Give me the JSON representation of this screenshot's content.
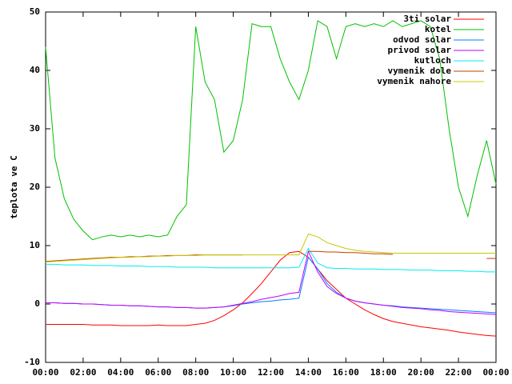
{
  "chart_data": {
    "type": "line",
    "ylabel": "teplota ve C",
    "x": [
      0,
      0.5,
      1,
      1.5,
      2,
      2.5,
      3,
      3.5,
      4,
      4.5,
      5,
      5.5,
      6,
      6.5,
      7,
      7.5,
      8,
      8.5,
      9,
      9.5,
      10,
      10.5,
      11,
      11.5,
      12,
      12.5,
      13,
      13.5,
      14,
      14.5,
      15,
      15.5,
      16,
      16.5,
      17,
      17.5,
      18,
      18.5,
      19,
      19.5,
      20,
      20.5,
      21,
      21.5,
      22,
      22.5,
      23,
      23.5,
      24
    ],
    "xlim": [
      0,
      24
    ],
    "xticks": [
      {
        "value": 0,
        "label": "00:00"
      },
      {
        "value": 2,
        "label": "02:00"
      },
      {
        "value": 4,
        "label": "04:00"
      },
      {
        "value": 6,
        "label": "06:00"
      },
      {
        "value": 8,
        "label": "08:00"
      },
      {
        "value": 10,
        "label": "10:00"
      },
      {
        "value": 12,
        "label": "12:00"
      },
      {
        "value": 14,
        "label": "14:00"
      },
      {
        "value": 16,
        "label": "16:00"
      },
      {
        "value": 18,
        "label": "18:00"
      },
      {
        "value": 20,
        "label": "20:00"
      },
      {
        "value": 22,
        "label": "22:00"
      },
      {
        "value": 24,
        "label": "00:00"
      }
    ],
    "ylim": [
      -10,
      50
    ],
    "yticks": [
      -10,
      0,
      10,
      20,
      30,
      40,
      50
    ],
    "legend": "top-right",
    "series": [
      {
        "name": "3ti solar",
        "color": "#ff0000",
        "values": [
          -3.5,
          -3.5,
          -3.5,
          -3.5,
          -3.5,
          -3.6,
          -3.6,
          -3.6,
          -3.7,
          -3.7,
          -3.7,
          -3.7,
          -3.6,
          -3.7,
          -3.7,
          -3.7,
          -3.5,
          -3.3,
          -2.8,
          -2,
          -1,
          0.2,
          1.8,
          3.5,
          5.5,
          7.5,
          8.8,
          9,
          8,
          6,
          4,
          2.5,
          1,
          0,
          -1,
          -1.8,
          -2.5,
          -3,
          -3.3,
          -3.6,
          -3.9,
          -4.1,
          -4.3,
          -4.5,
          -4.8,
          -5,
          -5.2,
          -5.4,
          -5.5
        ]
      },
      {
        "name": "kotel",
        "color": "#00c000",
        "values": [
          44,
          25,
          18,
          14.5,
          12.5,
          11,
          11.5,
          11.8,
          11.5,
          11.8,
          11.5,
          11.8,
          11.5,
          11.8,
          15,
          17,
          47.5,
          38,
          35,
          26,
          28,
          35,
          48,
          47.5,
          47.5,
          42,
          38,
          35,
          40,
          48.5,
          47.5,
          42,
          47.5,
          48,
          47.5,
          48,
          47.5,
          48.5,
          47.5,
          48,
          48.5,
          47.5,
          42,
          30,
          20,
          15,
          22,
          28,
          20.5
        ]
      },
      {
        "name": "odvod solar",
        "color": "#0080ff",
        "values": [
          0.2,
          0.2,
          0.1,
          0.1,
          0,
          0,
          -0.1,
          -0.2,
          -0.2,
          -0.3,
          -0.3,
          -0.4,
          -0.5,
          -0.5,
          -0.6,
          -0.6,
          -0.7,
          -0.7,
          -0.6,
          -0.5,
          -0.3,
          0,
          0.2,
          0.4,
          0.5,
          0.7,
          0.8,
          1,
          8,
          6,
          3.5,
          2,
          1,
          0.5,
          0.2,
          0,
          -0.2,
          -0.3,
          -0.5,
          -0.6,
          -0.7,
          -0.8,
          -0.9,
          -1,
          -1.1,
          -1.2,
          -1.3,
          -1.4,
          -1.5
        ]
      },
      {
        "name": "privod solar",
        "color": "#c000ff",
        "values": [
          0.2,
          0.2,
          0.1,
          0.1,
          0,
          0,
          -0.1,
          -0.2,
          -0.2,
          -0.3,
          -0.3,
          -0.4,
          -0.5,
          -0.5,
          -0.6,
          -0.6,
          -0.7,
          -0.7,
          -0.6,
          -0.5,
          -0.2,
          0.1,
          0.4,
          0.8,
          1.1,
          1.4,
          1.8,
          2,
          9,
          5.5,
          3,
          1.8,
          1,
          0.5,
          0.2,
          0,
          -0.2,
          -0.4,
          -0.6,
          -0.7,
          -0.8,
          -1,
          -1.1,
          -1.3,
          -1.4,
          -1.5,
          -1.6,
          -1.7,
          -1.8
        ]
      },
      {
        "name": "kutloch",
        "color": "#00eeee",
        "values": [
          6.8,
          6.8,
          6.7,
          6.7,
          6.7,
          6.6,
          6.6,
          6.6,
          6.5,
          6.5,
          6.5,
          6.4,
          6.4,
          6.4,
          6.3,
          6.3,
          6.3,
          6.3,
          6.2,
          6.2,
          6.2,
          6.2,
          6.2,
          6.2,
          6.2,
          6.2,
          6.2,
          6.3,
          9.5,
          7,
          6.2,
          6.1,
          6.1,
          6,
          6,
          6,
          5.9,
          5.9,
          5.9,
          5.8,
          5.8,
          5.8,
          5.7,
          5.7,
          5.7,
          5.6,
          5.6,
          5.5,
          5.5
        ]
      },
      {
        "name": "vymenik dole",
        "color": "#c04000",
        "values": [
          7.3,
          7.4,
          7.5,
          7.6,
          7.7,
          7.8,
          7.9,
          8,
          8,
          8.1,
          8.1,
          8.2,
          8.2,
          8.3,
          8.3,
          8.3,
          8.4,
          8.4,
          8.4,
          8.4,
          8.4,
          8.4,
          null,
          null,
          null,
          null,
          null,
          null,
          9,
          9,
          8.9,
          8.9,
          8.8,
          8.8,
          8.7,
          8.6,
          8.6,
          8.5,
          null,
          null,
          null,
          null,
          null,
          null,
          null,
          null,
          null,
          7.8,
          7.8
        ]
      },
      {
        "name": "vymenik nahore",
        "color": "#c8c800",
        "values": [
          7.2,
          7.3,
          7.4,
          7.5,
          7.6,
          7.7,
          7.8,
          7.9,
          8,
          8,
          8.1,
          8.1,
          8.2,
          8.2,
          8.3,
          8.3,
          8.3,
          8.4,
          8.4,
          8.4,
          8.4,
          8.4,
          8.4,
          8.4,
          8.4,
          8.4,
          8.4,
          8.4,
          12,
          11.5,
          10.5,
          10,
          9.5,
          9.2,
          9,
          8.9,
          8.8,
          8.7,
          8.7,
          8.7,
          8.7,
          8.7,
          8.7,
          8.7,
          8.7,
          8.7,
          8.7,
          8.7,
          8.7
        ]
      }
    ]
  }
}
